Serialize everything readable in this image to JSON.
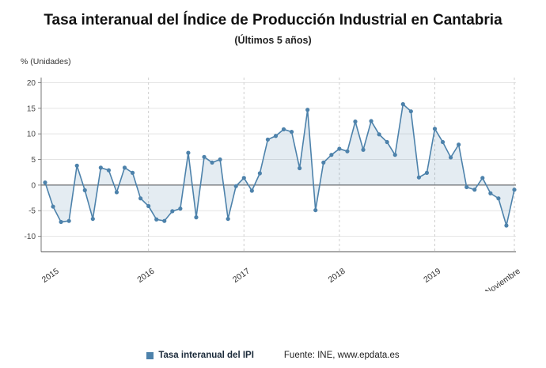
{
  "title": "Tasa interanual del Índice de Producción Industrial en Cantabria",
  "subtitle": "(Últimos 5 años)",
  "unit_label": "% (Unidades)",
  "legend": {
    "series_label": "Tasa interanual del IPI",
    "source": "Fuente: INE, www.epdata.es",
    "marker_color": "#4d82ab"
  },
  "chart_data": {
    "type": "line",
    "title": "Tasa interanual del Índice de Producción Industrial en Cantabria",
    "subtitle": "(Últimos 5 años)",
    "ylabel": "% (Unidades)",
    "xlabel": "",
    "x_tick_labels": [
      "2015",
      "2016",
      "2017",
      "2018",
      "2019",
      "Noviembre"
    ],
    "x_tick_indices": [
      1,
      13,
      25,
      37,
      49,
      59
    ],
    "y_ticks": [
      20,
      15,
      10,
      5,
      0,
      -5,
      -10
    ],
    "ylim": [
      -13,
      21
    ],
    "grid": true,
    "legend_position": "bottom",
    "line_color": "#4d82ab",
    "fill_color": "rgba(77,130,171,0.15)",
    "values": [
      0.5,
      -4.2,
      -7.2,
      -7.0,
      3.8,
      -1.0,
      -6.6,
      3.4,
      2.9,
      -1.4,
      3.4,
      2.4,
      -2.6,
      -4.1,
      -6.7,
      -7.0,
      -5.1,
      -4.6,
      6.3,
      -6.3,
      5.5,
      4.4,
      5.0,
      -6.6,
      -0.2,
      1.4,
      -1.1,
      2.3,
      8.9,
      9.6,
      10.9,
      10.4,
      3.3,
      14.7,
      -4.9,
      4.4,
      5.9,
      7.1,
      6.6,
      12.4,
      6.9,
      12.5,
      9.9,
      8.4,
      5.9,
      15.8,
      14.4,
      1.5,
      2.4,
      11.0,
      8.4,
      5.4,
      7.9,
      -0.4,
      -0.9,
      1.4,
      -1.6,
      -2.6,
      -7.9,
      -0.9
    ]
  }
}
